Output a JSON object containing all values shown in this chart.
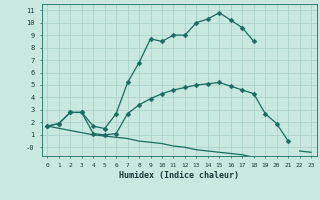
{
  "xlabel": "Humidex (Indice chaleur)",
  "background_color": "#c8e8e0",
  "grid_color": "#a8cfc8",
  "line_color": "#1a6b60",
  "xlim": [
    -0.5,
    23.5
  ],
  "ylim": [
    -0.7,
    11.5
  ],
  "xticks": [
    0,
    1,
    2,
    3,
    4,
    5,
    6,
    7,
    8,
    9,
    10,
    11,
    12,
    13,
    14,
    15,
    16,
    17,
    18,
    19,
    20,
    21,
    22,
    23
  ],
  "yticks": [
    0,
    1,
    2,
    3,
    4,
    5,
    6,
    7,
    8,
    9,
    10,
    11
  ],
  "ytick_labels": [
    "-0",
    "1",
    "2",
    "3",
    "4",
    "5",
    "6",
    "7",
    "8",
    "9",
    "10",
    "11"
  ],
  "line1_x": [
    0,
    1,
    2,
    3,
    4,
    5,
    6,
    7,
    8,
    9,
    10,
    11,
    12,
    13,
    14,
    15,
    16,
    17,
    18
  ],
  "line1_y": [
    1.7,
    1.9,
    2.8,
    2.8,
    1.7,
    1.5,
    2.7,
    5.2,
    6.8,
    8.7,
    8.5,
    9.0,
    9.0,
    10.0,
    10.3,
    10.8,
    10.2,
    9.6,
    8.5
  ],
  "line2_x": [
    0,
    1,
    2,
    3,
    4,
    5,
    6,
    7,
    8,
    9,
    10,
    11,
    12,
    13,
    14,
    15,
    16,
    17,
    18,
    19,
    20,
    21
  ],
  "line2_y": [
    1.7,
    1.9,
    2.8,
    2.8,
    1.1,
    1.0,
    1.1,
    2.7,
    3.4,
    3.9,
    4.3,
    4.6,
    4.8,
    5.0,
    5.1,
    5.2,
    4.9,
    4.6,
    4.3,
    2.7,
    1.9,
    0.5
  ],
  "line3_x": [
    0,
    4,
    5,
    6,
    7,
    8,
    9,
    10,
    11,
    12,
    13,
    14,
    15,
    16,
    17,
    18,
    22,
    23
  ],
  "line3_y": [
    1.7,
    1.0,
    0.9,
    0.8,
    0.7,
    0.5,
    0.4,
    0.3,
    0.1,
    0.0,
    -0.2,
    -0.3,
    -0.4,
    -0.5,
    -0.6,
    -0.8,
    -0.3,
    -0.4
  ]
}
